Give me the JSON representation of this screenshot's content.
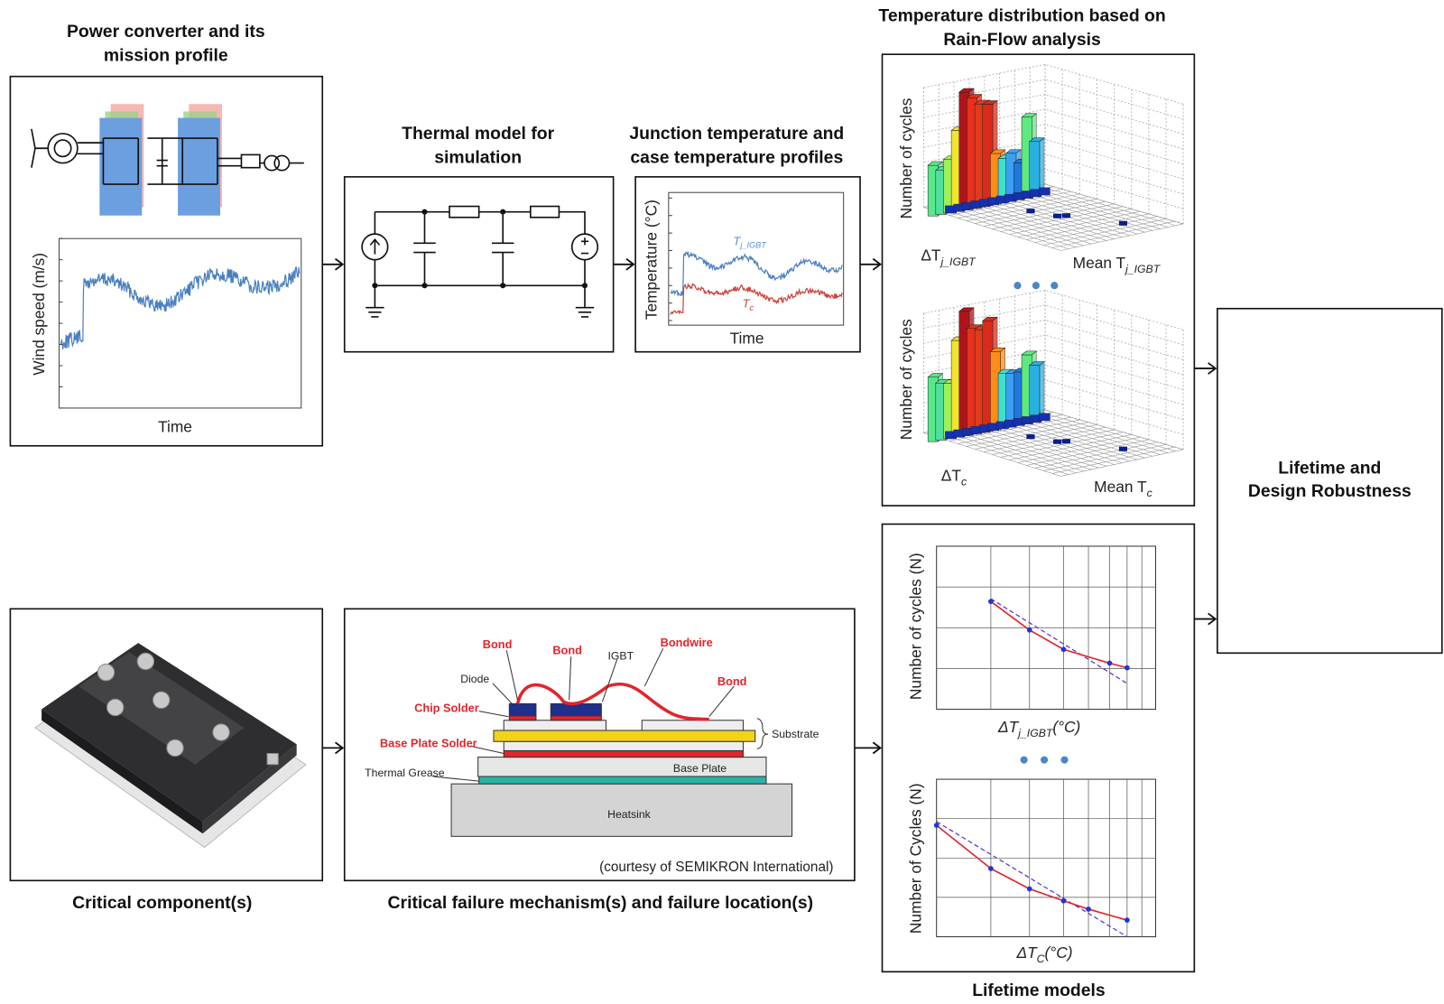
{
  "mission_profile": {
    "title": [
      "Power converter and its",
      "mission profile"
    ],
    "y_label": "Wind speed (m/s)",
    "x_label": "Time"
  },
  "thermal_model": {
    "title": [
      "Thermal model for",
      "simulation"
    ]
  },
  "temperature_profiles": {
    "title": [
      "Junction temperature and",
      "case temperature profiles"
    ],
    "y_label": "Temperature (°C)",
    "x_label": "Time",
    "curves": [
      {
        "symbol": "T",
        "subscript": "j_IGBT"
      },
      {
        "symbol": "T",
        "subscript": "c"
      }
    ]
  },
  "rainflow": {
    "title": [
      "Temperature distribution based on",
      "Rain-Flow analysis"
    ],
    "plots": [
      {
        "z_label": "Number of cycles",
        "x_label": {
          "symbol": "ΔT",
          "subscript": "j_IGBT"
        },
        "y_label": {
          "symbol": "Mean T",
          "subscript": "j_IGBT"
        }
      },
      {
        "z_label": "Number of cycles",
        "x_label": {
          "symbol": "ΔT",
          "subscript": "c"
        },
        "y_label": {
          "symbol": "Mean T",
          "subscript": "c"
        }
      }
    ]
  },
  "output": {
    "title": [
      "Lifetime and",
      "Design Robustness"
    ]
  },
  "component": {
    "title": "Critical component(s)"
  },
  "failure": {
    "title": "Critical failure mechanism(s) and failure location(s)",
    "labels": {
      "bond_1": "Bond",
      "bond_2": "Bond",
      "igbt": "IGBT",
      "bondwire": "Bondwire",
      "bond_3": "Bond",
      "diode": "Diode",
      "chip_solder": "Chip Solder",
      "base_plate_solder": "Base Plate Solder",
      "substrate": "Substrate",
      "thermal_grease": "Thermal Grease",
      "base_plate": "Base Plate",
      "heatsink": "Heatsink"
    },
    "courtesy": "(courtesy of SEMIKRON International)"
  },
  "lifetime_models": {
    "title": "Lifetime models",
    "plots": [
      {
        "y_label": "Number of cycles (N)",
        "x_label": {
          "symbol": "ΔT",
          "subscript": "j_IGBT",
          "unit": "(°C)"
        }
      },
      {
        "y_label": "Number of Cycles (N)",
        "x_label": {
          "symbol": "ΔT",
          "subscript": "C",
          "unit": "(°C)"
        }
      }
    ]
  }
}
